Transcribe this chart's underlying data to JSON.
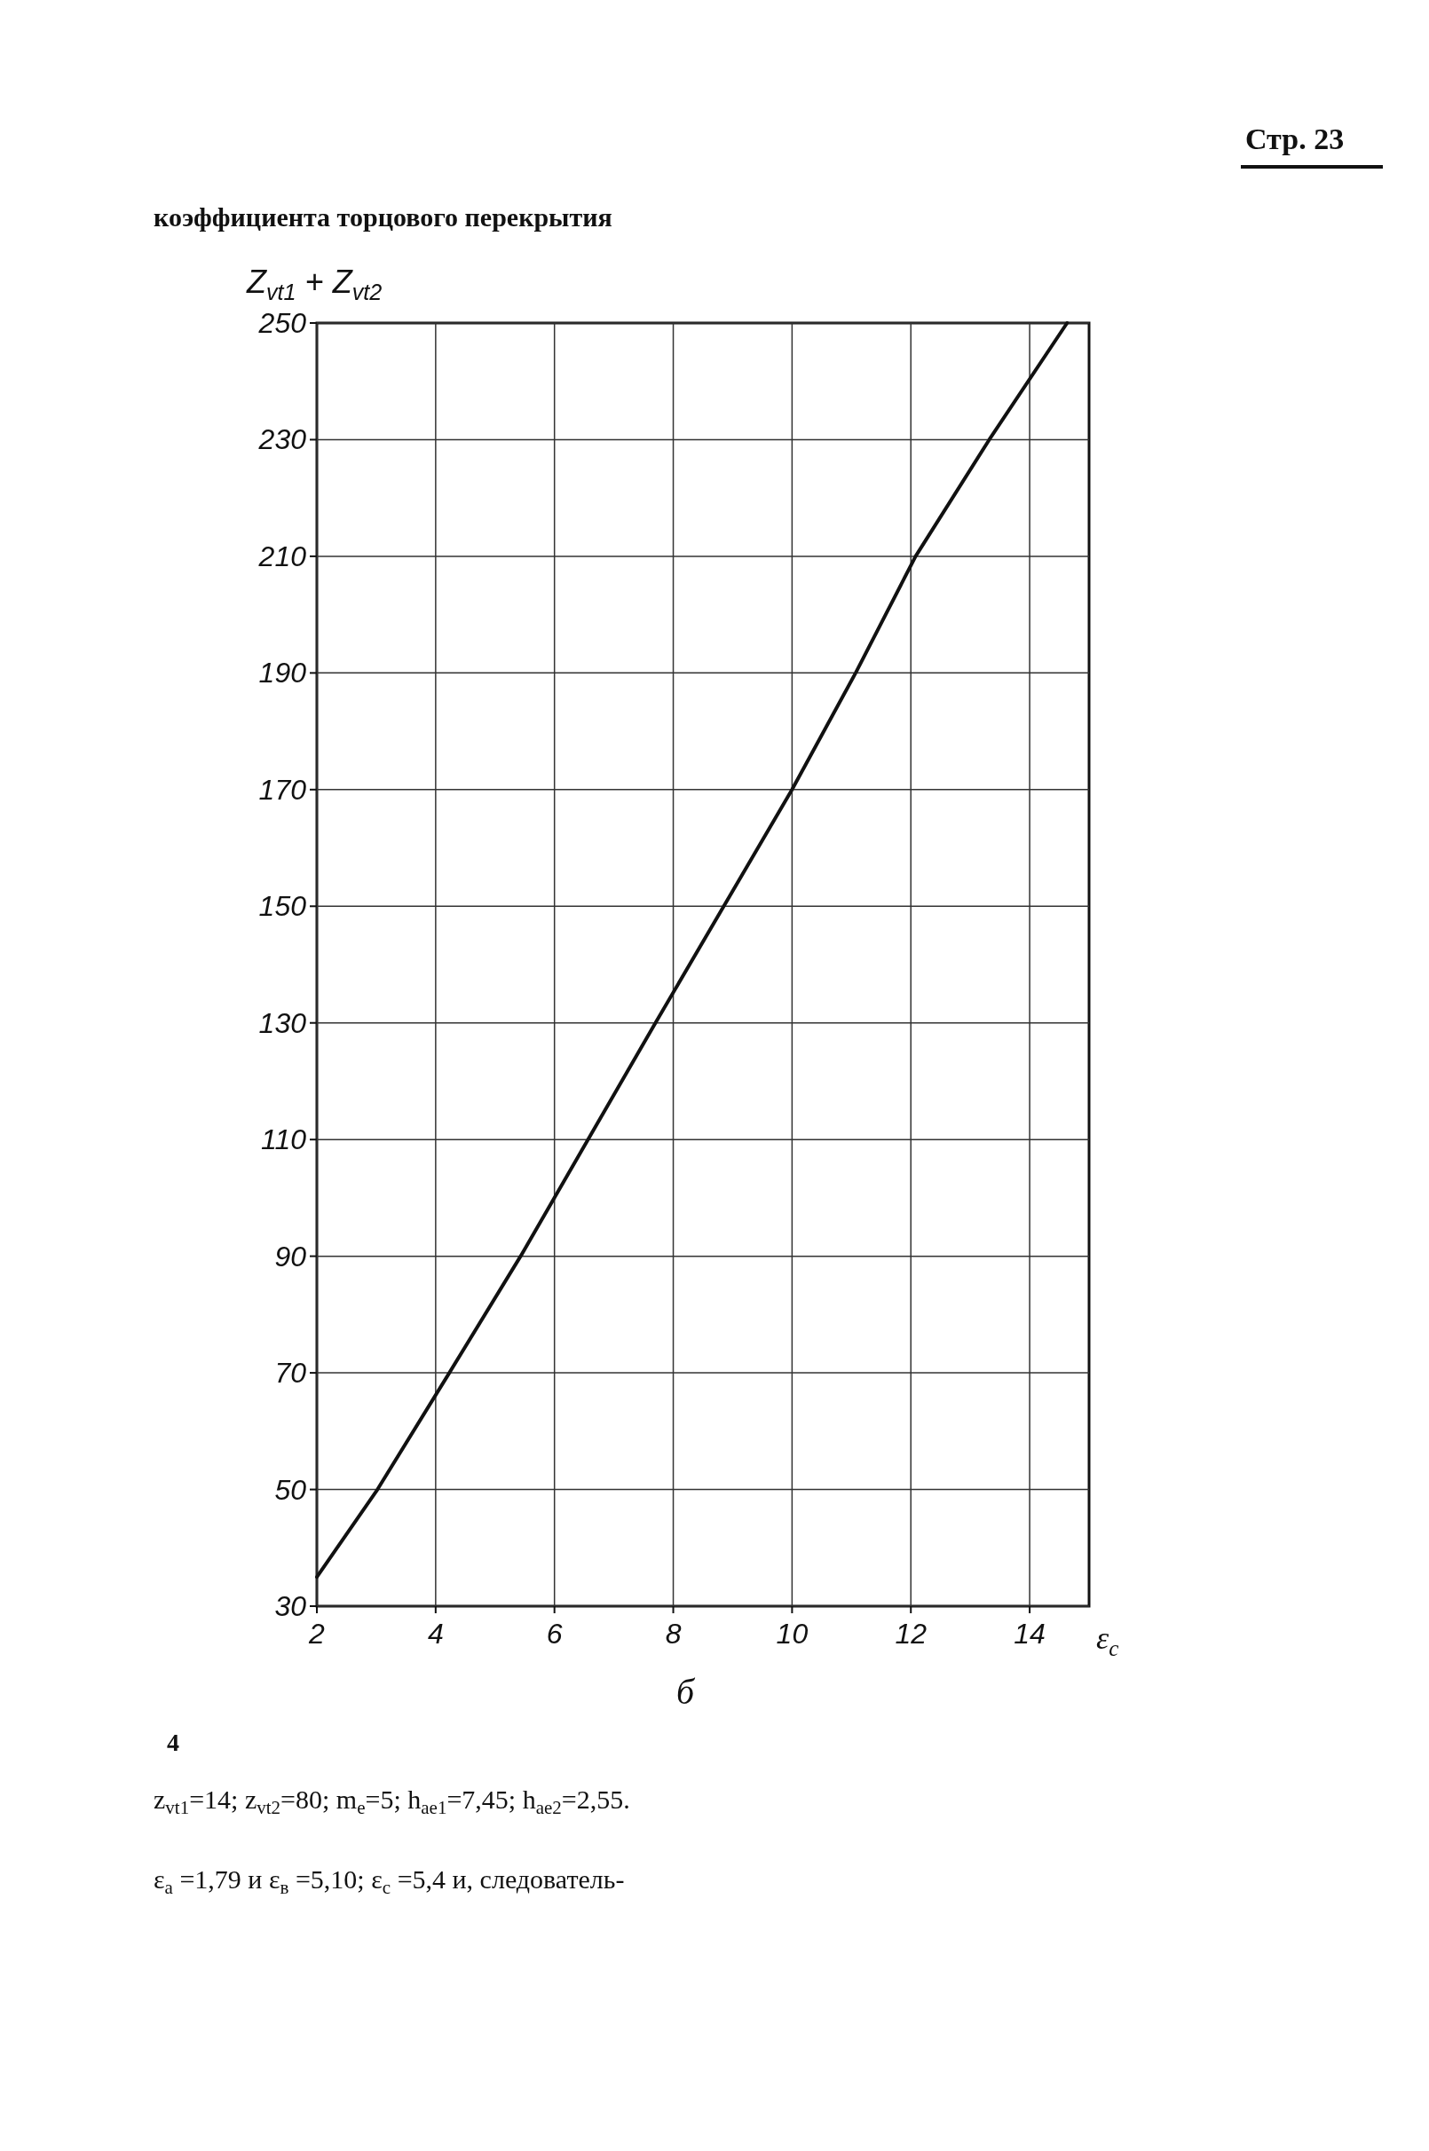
{
  "chart_data": {
    "type": "line",
    "title": "коэффициента торцового перекрытия",
    "subtitle": "б",
    "xlabel": "ε$_{c}$",
    "ylabel": "Z$_{vt1}$ + Z$_{vt2}$",
    "x": [
      2,
      3.02,
      4.23,
      5.43,
      7.7,
      8.85,
      10,
      11.07,
      12.08,
      13.32,
      14.63
    ],
    "series": [
      {
        "color": "#111111",
        "values": [
          35,
          50,
          70,
          90,
          130,
          150,
          170,
          190,
          210,
          230,
          250
        ]
      }
    ],
    "xlim": [
      2,
      15
    ],
    "xticks": [
      2,
      4,
      6,
      8,
      10,
      12,
      14
    ],
    "ylim": [
      30,
      250
    ],
    "yticks": [
      30,
      50,
      70,
      90,
      110,
      130,
      150,
      170,
      190,
      210,
      230,
      250
    ],
    "grid": true,
    "marker": "none",
    "line_style": "solid",
    "annotations": [
      "Стр. 23",
      "4",
      "z$_{vt1}$=14; z$_{vt2}$=80; m$_{e}$=5; h$_{ae1}$=7,45; h$_{ae2}$=2,55.",
      "ε$_{a}$ =1,79 и ε$_{в}$ =5,10; ε$_{c}$ =5,4 и, следователь-"
    ]
  }
}
